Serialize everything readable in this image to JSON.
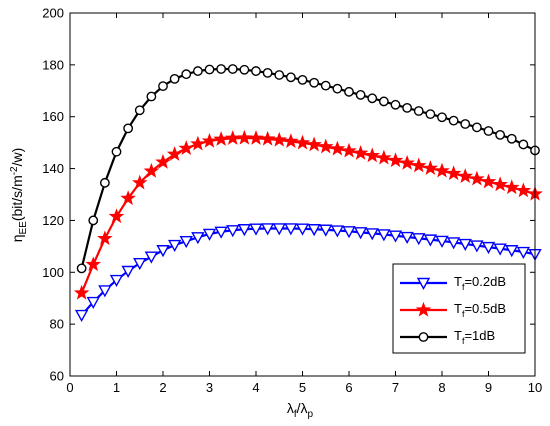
{
  "chart_data": {
    "type": "line",
    "xlabel": {
      "main": "λ",
      "sub1": "f",
      "mid": "/λ",
      "sub2": "p"
    },
    "ylabel": {
      "main": "η",
      "sub": "EE",
      "rest1": "(bit/s/m",
      "sup": "-2",
      "rest2": "/w)"
    },
    "xlim": [
      0,
      10
    ],
    "ylim": [
      60,
      200
    ],
    "xticks": [
      "0",
      "1",
      "2",
      "3",
      "4",
      "5",
      "6",
      "7",
      "8",
      "9",
      "10"
    ],
    "yticks": [
      "60",
      "80",
      "100",
      "120",
      "140",
      "160",
      "180",
      "200"
    ],
    "grid": false,
    "legend_position": "bottom-right",
    "x": [
      0.25,
      0.5,
      0.75,
      1.0,
      1.25,
      1.5,
      1.75,
      2.0,
      2.25,
      2.5,
      2.75,
      3.0,
      3.25,
      3.5,
      3.75,
      4.0,
      4.25,
      4.5,
      4.75,
      5.0,
      5.25,
      5.5,
      5.75,
      6.0,
      6.25,
      6.5,
      6.75,
      7.0,
      7.25,
      7.5,
      7.75,
      8.0,
      8.25,
      8.5,
      8.75,
      9.0,
      9.25,
      9.5,
      9.75,
      10.0
    ],
    "series": [
      {
        "legend_main": "T",
        "legend_sub": "f",
        "legend_rest": "=0.2dB",
        "color": "#0000ff",
        "marker": "triangle-down",
        "values": [
          83.5,
          88.5,
          93.0,
          97.0,
          100.5,
          103.5,
          106.0,
          108.5,
          110.5,
          112.0,
          113.5,
          114.8,
          115.6,
          116.2,
          116.6,
          116.8,
          116.9,
          116.9,
          116.9,
          116.8,
          116.6,
          116.4,
          116.1,
          115.8,
          115.4,
          115.0,
          114.6,
          114.1,
          113.6,
          113.1,
          112.6,
          112.1,
          111.5,
          110.9,
          110.3,
          109.7,
          109.1,
          108.5,
          107.8,
          107.0
        ]
      },
      {
        "legend_main": "T",
        "legend_sub": "f",
        "legend_rest": "=0.5dB",
        "color": "#ff0000",
        "marker": "star",
        "values": [
          92.0,
          103.0,
          113.0,
          121.5,
          128.5,
          134.5,
          139.0,
          142.5,
          145.5,
          147.8,
          149.5,
          150.6,
          151.3,
          151.7,
          151.8,
          151.7,
          151.4,
          151.0,
          150.5,
          149.9,
          149.2,
          148.4,
          147.6,
          146.8,
          145.9,
          145.0,
          144.1,
          143.1,
          142.1,
          141.1,
          140.1,
          139.1,
          138.1,
          137.0,
          136.0,
          134.9,
          133.8,
          132.7,
          131.5,
          130.2
        ]
      },
      {
        "legend_main": "T",
        "legend_sub": "f",
        "legend_rest": "=1dB",
        "color": "#000000",
        "marker": "circle",
        "values": [
          101.5,
          120.0,
          134.5,
          146.5,
          155.5,
          162.5,
          167.8,
          171.8,
          174.6,
          176.4,
          177.6,
          178.2,
          178.4,
          178.4,
          178.1,
          177.6,
          176.9,
          176.1,
          175.2,
          174.2,
          173.1,
          172.0,
          170.8,
          169.6,
          168.4,
          167.1,
          165.9,
          164.6,
          163.4,
          162.2,
          161.0,
          159.8,
          158.5,
          157.2,
          155.9,
          154.5,
          153.0,
          151.5,
          149.3,
          147.0
        ]
      }
    ]
  }
}
